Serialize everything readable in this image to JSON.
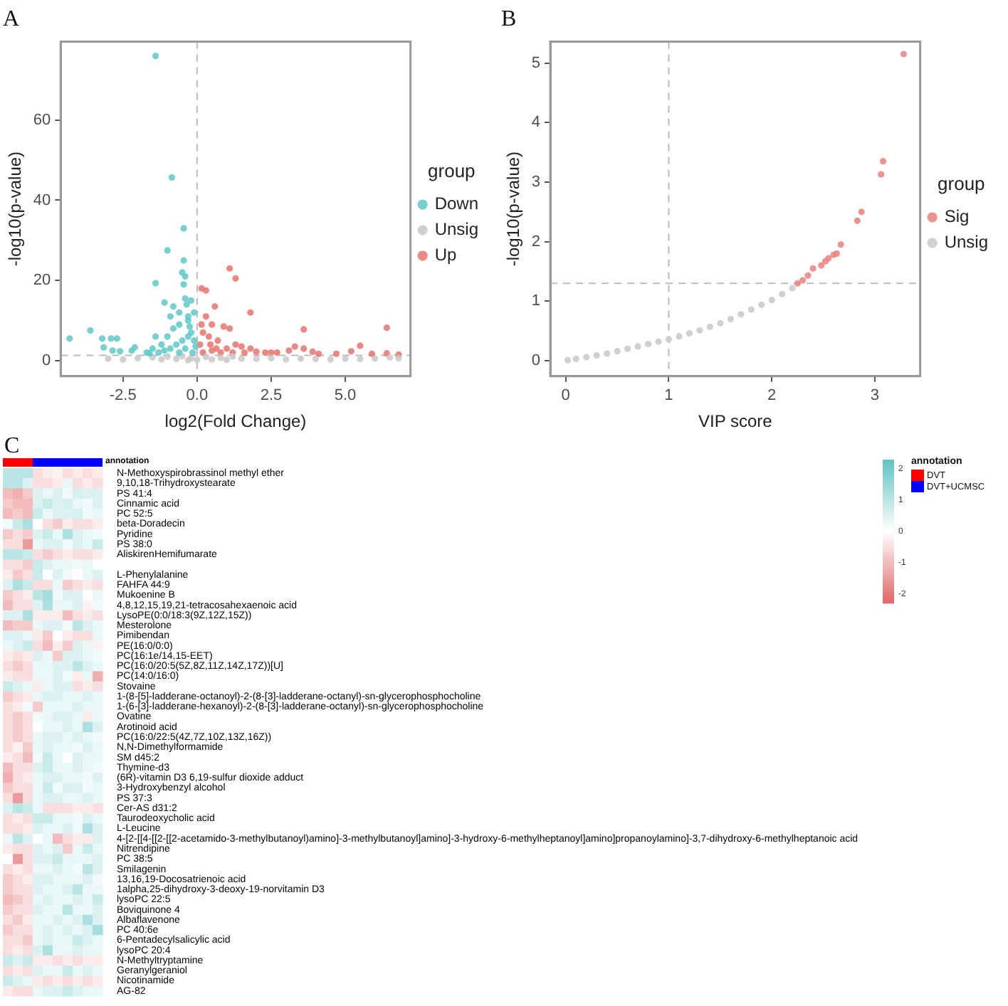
{
  "chart_data": [
    {
      "type": "scatter",
      "title": "A",
      "xlabel": "log2(Fold Change)",
      "ylabel": "-log10(p-value)",
      "legend_title": "group",
      "legend": "right",
      "grid": false,
      "marker": "circle",
      "xlim": [
        -4.6,
        7.2
      ],
      "xticks": [
        {
          "value": -2.5,
          "label": "-2.5"
        },
        {
          "value": 0,
          "label": "0.0"
        },
        {
          "value": 2.5,
          "label": "2.5"
        },
        {
          "value": 5,
          "label": "5.0"
        }
      ],
      "ylim": [
        -3.9,
        79.6
      ],
      "yticks": [
        0,
        20,
        40,
        60
      ],
      "ref_lines": [
        {
          "axis": "x",
          "value": 0,
          "line_style": "dashed",
          "color": "#bbbbbb"
        },
        {
          "axis": "y",
          "value": 1.3,
          "line_style": "dashed",
          "color": "#bbbbbb"
        }
      ],
      "series": [
        {
          "name": "Down",
          "color": "#5ec8c8",
          "x": [
            -1.4,
            -0.85,
            -0.45,
            -1,
            -0.45,
            -1.4,
            -0.5,
            -0.4,
            -0.45,
            -0.4,
            -0.35,
            -1.1,
            -0.8,
            -0.6,
            -0.9,
            -0.3,
            -4.3,
            -3.6,
            -3.2,
            -3.15,
            -2.9,
            -2.7,
            -2.85,
            -2.6,
            -2.2,
            -2.1,
            -1.4,
            -1.7,
            -1.5,
            -1.2,
            -1,
            -0.8,
            -0.6,
            -0.3,
            -0.2,
            -0.1,
            -0.5,
            -0.7,
            -0.9,
            -1.1,
            -1.3,
            -0.4,
            -0.15,
            -0.6,
            -0.25,
            -0.1,
            -0.2,
            -0.3,
            -1.6,
            -0.05
          ],
          "values": [
            76,
            45.7,
            33,
            27.5,
            25,
            19.3,
            22,
            21,
            19,
            15.5,
            14,
            14.5,
            13.5,
            12,
            11,
            11,
            5.5,
            7.5,
            5.5,
            3.3,
            5.5,
            5.5,
            2.5,
            2.3,
            2.5,
            3.3,
            6,
            2,
            3,
            4,
            6,
            8,
            9,
            10,
            7,
            5,
            5,
            4,
            3,
            2.5,
            2,
            3,
            2,
            2,
            8.5,
            12,
            15,
            6,
            1.8,
            3.5
          ]
        },
        {
          "name": "Unsig",
          "color": "#c8c8c8",
          "x": [
            -3,
            -2.5,
            -2,
            -1.5,
            -1,
            -0.5,
            -0.2,
            0,
            0.3,
            0.8,
            1.5,
            2,
            2.5,
            3,
            3.5,
            4,
            4.5,
            5,
            5.5,
            6,
            6.5,
            6.8,
            -1.2,
            -0.7,
            0.5,
            1,
            1.2,
            -0.3
          ],
          "values": [
            0.5,
            0.3,
            0.6,
            0.8,
            1,
            1.1,
            0.5,
            0.2,
            0.9,
            0.7,
            0.5,
            0.4,
            0.6,
            0.3,
            0.5,
            0.4,
            0.3,
            0.5,
            0.4,
            0.5,
            0.8,
            0.6,
            0.3,
            0.4,
            0.3,
            0.2,
            1,
            0.1
          ]
        },
        {
          "name": "Up",
          "color": "#e8736c",
          "x": [
            1.1,
            1.3,
            0.15,
            0.3,
            0.6,
            1.8,
            0.3,
            0.5,
            0.9,
            1.1,
            3.6,
            6.4,
            0.2,
            0.4,
            0.7,
            1.3,
            1.5,
            1.8,
            2.3,
            2.7,
            3.1,
            3.3,
            3.6,
            3.9,
            4.1,
            4.7,
            5.2,
            5.5,
            5.9,
            6.4,
            6.8,
            0.1,
            0.2,
            0.5,
            0.8,
            1,
            1.2,
            2,
            2.5,
            0.15,
            0.45,
            0.65,
            1.6
          ],
          "values": [
            23,
            20.5,
            18,
            17.5,
            13.5,
            12,
            11,
            9,
            8.5,
            8,
            7.8,
            8.2,
            7,
            6,
            5,
            4,
            3.5,
            3,
            2,
            2,
            2.5,
            3.5,
            3,
            2.2,
            1.7,
            1.7,
            2.3,
            3.7,
            1.7,
            1.8,
            1.5,
            4,
            2,
            2.5,
            2,
            3,
            2,
            2.2,
            2,
            9,
            4,
            3,
            2
          ]
        }
      ]
    },
    {
      "type": "scatter",
      "title": "B",
      "xlabel": "VIP score",
      "ylabel": "-log10(p-value)",
      "legend_title": "group",
      "legend": "right",
      "grid": false,
      "marker": "circle",
      "xlim": [
        -0.15,
        3.44
      ],
      "xticks": [
        0,
        1,
        2,
        3
      ],
      "ylim": [
        -0.26,
        5.36
      ],
      "yticks": [
        0,
        1,
        2,
        3,
        4,
        5
      ],
      "ref_lines": [
        {
          "axis": "x",
          "value": 1,
          "line_style": "dashed",
          "color": "#bbbbbb"
        },
        {
          "axis": "y",
          "value": 1.3,
          "line_style": "dashed",
          "color": "#bbbbbb"
        }
      ],
      "series": [
        {
          "name": "Sig",
          "color": "#e8827c",
          "x": [
            2.25,
            2.3,
            2.33,
            2.35,
            2.4,
            2.48,
            2.52,
            2.55,
            2.6,
            2.63,
            2.67,
            2.83,
            2.87,
            3.06,
            3.08,
            3.28
          ],
          "values": [
            1.3,
            1.35,
            null,
            1.43,
            1.55,
            1.6,
            1.67,
            1.72,
            1.78,
            1.8,
            1.95,
            2.35,
            2.5,
            3.13,
            3.35,
            5.15
          ]
        },
        {
          "name": "Unsig",
          "color": "#c8c8c8",
          "x": [
            0.02,
            0.1,
            0.2,
            0.3,
            0.4,
            0.5,
            0.6,
            0.7,
            0.8,
            0.9,
            1,
            1.1,
            1.2,
            1.3,
            1.4,
            1.5,
            1.6,
            1.7,
            1.8,
            1.9,
            2,
            2.1,
            2.2
          ],
          "values": [
            0.01,
            0.03,
            0.06,
            0.09,
            0.12,
            0.16,
            0.2,
            0.24,
            0.28,
            0.32,
            0.36,
            0.41,
            0.46,
            0.51,
            0.57,
            0.63,
            0.7,
            0.78,
            0.86,
            0.94,
            1.02,
            1.12,
            1.22
          ]
        }
      ]
    },
    {
      "type": "heatmap",
      "title": "C",
      "legend_title": "annotation",
      "annotations": [
        "annotation",
        "DVT",
        "DVT+UCMSC"
      ],
      "clim": [
        -2.3,
        2.3
      ],
      "cticks": [
        {
          "value": 2,
          "label": "2"
        },
        {
          "value": 1,
          "label": "1"
        },
        {
          "value": 0,
          "label": "0"
        },
        {
          "value": -1,
          "label": "-1"
        },
        {
          "value": -2,
          "label": "-2"
        }
      ],
      "colors": [
        "#e06666",
        "#ffffff",
        "#5fc4c4"
      ],
      "categories": [
        null,
        null,
        null,
        null,
        null,
        null,
        null,
        null,
        null,
        null
      ],
      "y_categories": [
        "N-Methoxyspirobrassinol methyl ether",
        "9,10,18-Trihydroxystearate",
        "PS 41:4",
        "Cinnamic acid",
        "PC 52:5",
        "beta-Doradecin",
        "Pyridine",
        "PS 38:0",
        "AliskirenHemifumarate",
        null,
        "L-Phenylalanine",
        "FAHFA 44:9",
        "Mukoenine B",
        "4,8,12,15,19,21-tetracosahexaenoic acid",
        "LysoPE(0:0/18:3(9Z,12Z,15Z))",
        "Mesterolone",
        "Pimibendan",
        "PE(16:0/0:0)",
        "PC(16:1e/14,15-EET)",
        "PC(16:0/20:5(5Z,8Z,11Z,14Z,17Z))[U]",
        "PC(14:0/16:0)",
        "Stovaine",
        "1-(8-[5]-ladderane-octanoyl)-2-(8-[3]-ladderane-octanyl)-sn-glycerophosphocholine",
        "1-(6-[3]-ladderane-hexanoyl)-2-(8-[3]-ladderane-octanyl)-sn-glycerophosphocholine",
        "Ovatine",
        "Arotinoid acid",
        "PC(16:0/22:5(4Z,7Z,10Z,13Z,16Z))",
        "N,N-Dimethylformamide",
        "SM d45:2",
        "Thymine-d3",
        "(6R)-vitamin D3 6,19-sulfur dioxide adduct",
        "3-Hydroxybenzyl alcohol",
        "PS 37:3",
        "Cer-AS d31:2",
        "Taurodeoxycholic acid",
        "L-Leucine",
        "4-[2-[[4-[[2-[[2-acetamido-3-methylbutanoyl)amino]-3-methylbutanoyl]amino]-3-hydroxy-6-methylheptanoyl]amino]propanoylamino]-3,7-dihydroxy-6-methylheptanoic acid",
        "Nitrendipine",
        "PC 38:5",
        "Smilagenin",
        "13,16,19-Docosatrienoic acid",
        "1alpha,25-dihydroxy-3-deoxy-19-norvitamin D3",
        "lysoPC 22:5",
        "Boviquinone 4",
        "Albaflavenone",
        "PC 40:6e",
        "6-Pentadecylsalicylic acid",
        "lysoPC 20:4",
        "N-Methyltryptamine",
        "Geranylgeraniol",
        "Nicotinamide",
        "AG-82"
      ],
      "cells": [
        [
          1,
          1,
          1,
          -0.5,
          -0.3,
          -0.2,
          -0.5,
          -0.3,
          -0.5,
          -0.3
        ],
        [
          1,
          1,
          0.5,
          -0.5,
          -0.5,
          -0.3,
          0.3,
          -0.5,
          -0.3,
          -0.5
        ],
        [
          -1,
          -1.2,
          -0.8,
          0.5,
          0.3,
          0.5,
          0.2,
          0.6,
          0.5,
          0.5
        ],
        [
          -0.8,
          -1,
          -1,
          0.5,
          0.8,
          0.5,
          0.6,
          0.3,
          0.2,
          0.5
        ],
        [
          -1,
          -0.8,
          -1,
          0.8,
          0.3,
          0.5,
          0.5,
          0.6,
          0.2,
          0.3
        ],
        [
          0.2,
          0.8,
          1.2,
          0,
          -0.5,
          -0.8,
          -0.3,
          -0.5,
          -0.5,
          -0.3
        ],
        [
          -0.8,
          -0.5,
          -0.8,
          0.5,
          0.8,
          0.3,
          1.2,
          0.5,
          0.3,
          0.2
        ],
        [
          -0.5,
          -0.5,
          -1.5,
          0.3,
          0.5,
          0.5,
          0.2,
          0.5,
          0.3,
          0.8
        ],
        [
          1,
          1,
          0.8,
          -0.5,
          -0.8,
          -0.5,
          -0.3,
          -0.5,
          -0.5,
          -0.3
        ],
        [
          -0.5,
          -0.5,
          -0.8,
          0.8,
          0.5,
          0.3,
          0.3,
          0.2,
          0.3,
          0
        ],
        [
          -0.3,
          -0.8,
          -0.5,
          0.8,
          0,
          0.5,
          0.2,
          0,
          0.3,
          0.5
        ],
        [
          0.5,
          1.2,
          0.8,
          -0.5,
          -0.5,
          0.3,
          -0.8,
          -0.5,
          -0.3,
          -0.5
        ],
        [
          -0.8,
          -0.5,
          -0.3,
          1,
          1.3,
          0.2,
          0.5,
          0.5,
          0,
          0.3
        ],
        [
          -1,
          -0.5,
          -0.5,
          0.5,
          1.2,
          0.3,
          0.3,
          0.5,
          -0.2,
          0.2
        ],
        [
          0.5,
          0.5,
          1.2,
          -0.3,
          -0.3,
          -0.3,
          -1,
          -0.5,
          -0.3,
          -0.5
        ],
        [
          -1,
          -0.8,
          -0.8,
          0.3,
          0.5,
          0.5,
          0.2,
          1,
          0.5,
          0.3
        ],
        [
          0.5,
          0.5,
          0.3,
          -0.3,
          -0.8,
          0,
          -0.3,
          -0.5,
          -0.5,
          0.3
        ],
        [
          0.3,
          0.5,
          0.8,
          -0.5,
          -1,
          -0.3,
          -0.8,
          0.5,
          0.3,
          -0.2
        ],
        [
          -0.3,
          -0.5,
          -0.3,
          0.5,
          0.3,
          -0.8,
          0.5,
          0.5,
          0.3,
          0.2
        ],
        [
          -0.5,
          -0.8,
          -0.5,
          0.3,
          0.3,
          0.5,
          0.5,
          1,
          0.5,
          0.3
        ],
        [
          -0.3,
          -0.5,
          -0.5,
          0.3,
          0.3,
          0.5,
          0.2,
          -0.3,
          0.3,
          -1.2
        ],
        [
          0.8,
          0.5,
          0.3,
          -0.3,
          0.3,
          0.5,
          0.5,
          -0.5,
          -0.3,
          -0.5
        ],
        [
          -0.8,
          -0.5,
          -0.3,
          0.3,
          0.5,
          0.5,
          0.3,
          0.3,
          0.5,
          0.3
        ],
        [
          -0.5,
          -0.3,
          0.2,
          -0.8,
          0.3,
          0.3,
          0.3,
          0.5,
          0.3,
          0.3
        ],
        [
          -0.5,
          -0.8,
          -0.5,
          0.2,
          0.3,
          0.5,
          0.5,
          0.3,
          -0.3,
          0.3
        ],
        [
          -0.5,
          -0.8,
          -0.5,
          0,
          0.3,
          0.3,
          0.5,
          0.3,
          1.2,
          0.5
        ],
        [
          -0.5,
          -0.8,
          -0.5,
          0.3,
          0.5,
          0.5,
          0.3,
          0.5,
          0.3,
          0.2
        ],
        [
          -0.5,
          -0.2,
          -0.8,
          0.3,
          0.5,
          0.3,
          0.3,
          0.2,
          0.5,
          0.3
        ],
        [
          -0.3,
          -0.5,
          -1,
          0.2,
          0.8,
          0.3,
          0,
          0.5,
          0.3,
          0.3
        ],
        [
          -1,
          -0.5,
          -0.5,
          0.5,
          0.8,
          0.3,
          0.3,
          0.5,
          0.3,
          0.2
        ],
        [
          -1.2,
          -0.5,
          -0.3,
          0.3,
          0.5,
          0.5,
          0.3,
          0.3,
          0.2,
          0.5
        ],
        [
          -0.8,
          -0.5,
          -0.5,
          0.3,
          0.8,
          0.2,
          0.5,
          0.5,
          0.2,
          0.3
        ],
        [
          -0.5,
          -1.5,
          -0.5,
          0.3,
          0.5,
          0.5,
          0.3,
          0.3,
          0.5,
          0.3
        ],
        [
          0.5,
          1,
          0.8,
          0.3,
          -0.5,
          -0.5,
          -0.5,
          -0.3,
          -0.3,
          -0.5
        ],
        [
          -0.5,
          -0.3,
          -0.5,
          0.8,
          0.8,
          0.3,
          0.3,
          0.2,
          0.5,
          0.3
        ],
        [
          -0.5,
          -0.5,
          -0.3,
          0.5,
          0.3,
          0.3,
          0.5,
          0.2,
          1.2,
          0.5
        ],
        [
          0.3,
          1,
          0.5,
          0,
          0.3,
          -1,
          -0.5,
          -0.3,
          -0.3,
          0.5
        ],
        [
          -0.3,
          -0.5,
          -0.5,
          0.5,
          0.3,
          0.5,
          -0.8,
          0.3,
          0.8,
          0.3
        ],
        [
          0,
          -1.5,
          -0.5,
          0.5,
          0.5,
          0.8,
          0.3,
          0.3,
          0.3,
          0.5
        ],
        [
          -0.5,
          -0.3,
          -0.5,
          0.3,
          0.3,
          0.5,
          0.3,
          0.2,
          1,
          0.5
        ],
        [
          -0.8,
          -0.5,
          -0.3,
          0.5,
          0.5,
          0.3,
          0.3,
          0.3,
          0.5,
          0.2
        ],
        [
          -0.8,
          -0.5,
          -0.5,
          0.5,
          0.3,
          0.3,
          0.5,
          1,
          0.3,
          0.3
        ],
        [
          -1,
          -0.8,
          -0.5,
          0.3,
          0.5,
          0.3,
          0.3,
          0.5,
          0.3,
          0.8
        ],
        [
          -0.8,
          -0.5,
          -0.5,
          0.5,
          0.3,
          0.3,
          1,
          0.3,
          0.3,
          0.5
        ],
        [
          -0.5,
          -0.8,
          -0.3,
          0.3,
          0.3,
          0.5,
          0.3,
          0.5,
          1.2,
          0.5
        ],
        [
          -0.8,
          -0.5,
          -0.5,
          0.3,
          0.5,
          0.3,
          0.5,
          0.3,
          0.5,
          1.3
        ],
        [
          -0.5,
          -0.5,
          -0.8,
          0.3,
          0.5,
          0.3,
          0.3,
          0.8,
          0.5,
          0.3
        ],
        [
          -0.5,
          -0.3,
          -0.5,
          0.5,
          1.2,
          0.3,
          0.3,
          0.5,
          0.3,
          0.3
        ],
        [
          0.8,
          0.5,
          0.8,
          -0.3,
          -0.3,
          -0.5,
          -0.3,
          -0.5,
          -0.3,
          -0.3
        ],
        [
          -0.5,
          -0.3,
          -0.5,
          0.5,
          0.3,
          0.3,
          0.8,
          0.3,
          0.5,
          0.3
        ],
        [
          0.8,
          0.5,
          0.3,
          -0.3,
          -0.5,
          -0.3,
          -0.5,
          -0.3,
          -0.5,
          -0.3
        ],
        [
          -0.3,
          -0.5,
          -0.5,
          0.3,
          0.5,
          0.5,
          0.8,
          0.5,
          0.3,
          0.3
        ]
      ]
    }
  ]
}
